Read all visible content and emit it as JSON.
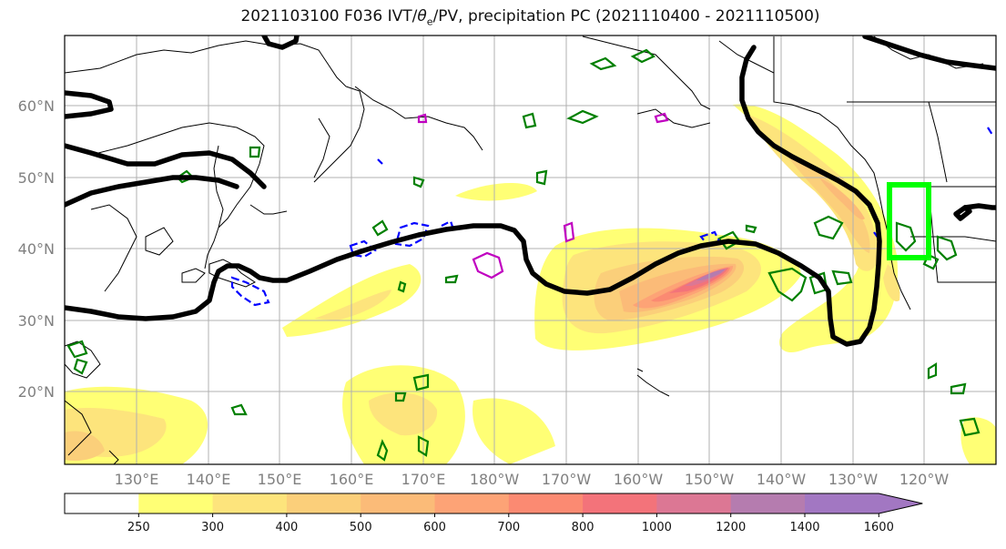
{
  "title": {
    "prefix": "2021103100 F036 IVT/",
    "theta": "θ",
    "theta_sub": "e",
    "suffix": "/PV, precipitation PC (2021110400 - 2021110500)"
  },
  "axes": {
    "lat_labels": [
      "60°N",
      "50°N",
      "40°N",
      "30°N",
      "20°N"
    ],
    "lon_labels": [
      "130°E",
      "140°E",
      "150°E",
      "160°E",
      "170°E",
      "180°W",
      "170°W",
      "160°W",
      "150°W",
      "140°W",
      "130°W",
      "120°W"
    ]
  },
  "colorbar": {
    "ticks": [
      "250",
      "300",
      "400",
      "500",
      "600",
      "700",
      "800",
      "1000",
      "1200",
      "1400",
      "1600"
    ],
    "colors": [
      "#ffff75",
      "#fde47c",
      "#fbcf7a",
      "#fbbb78",
      "#fda376",
      "#fb8a72",
      "#f3737a",
      "#dc7794",
      "#b57caf",
      "#a277c2"
    ]
  },
  "legend_colors": {
    "pv_contour": "#000000",
    "theta_e_positive": "#008000",
    "theta_e_negative": "#0000ff",
    "pv_anomaly": "#c000c0",
    "target_box": "#00ff00"
  }
}
